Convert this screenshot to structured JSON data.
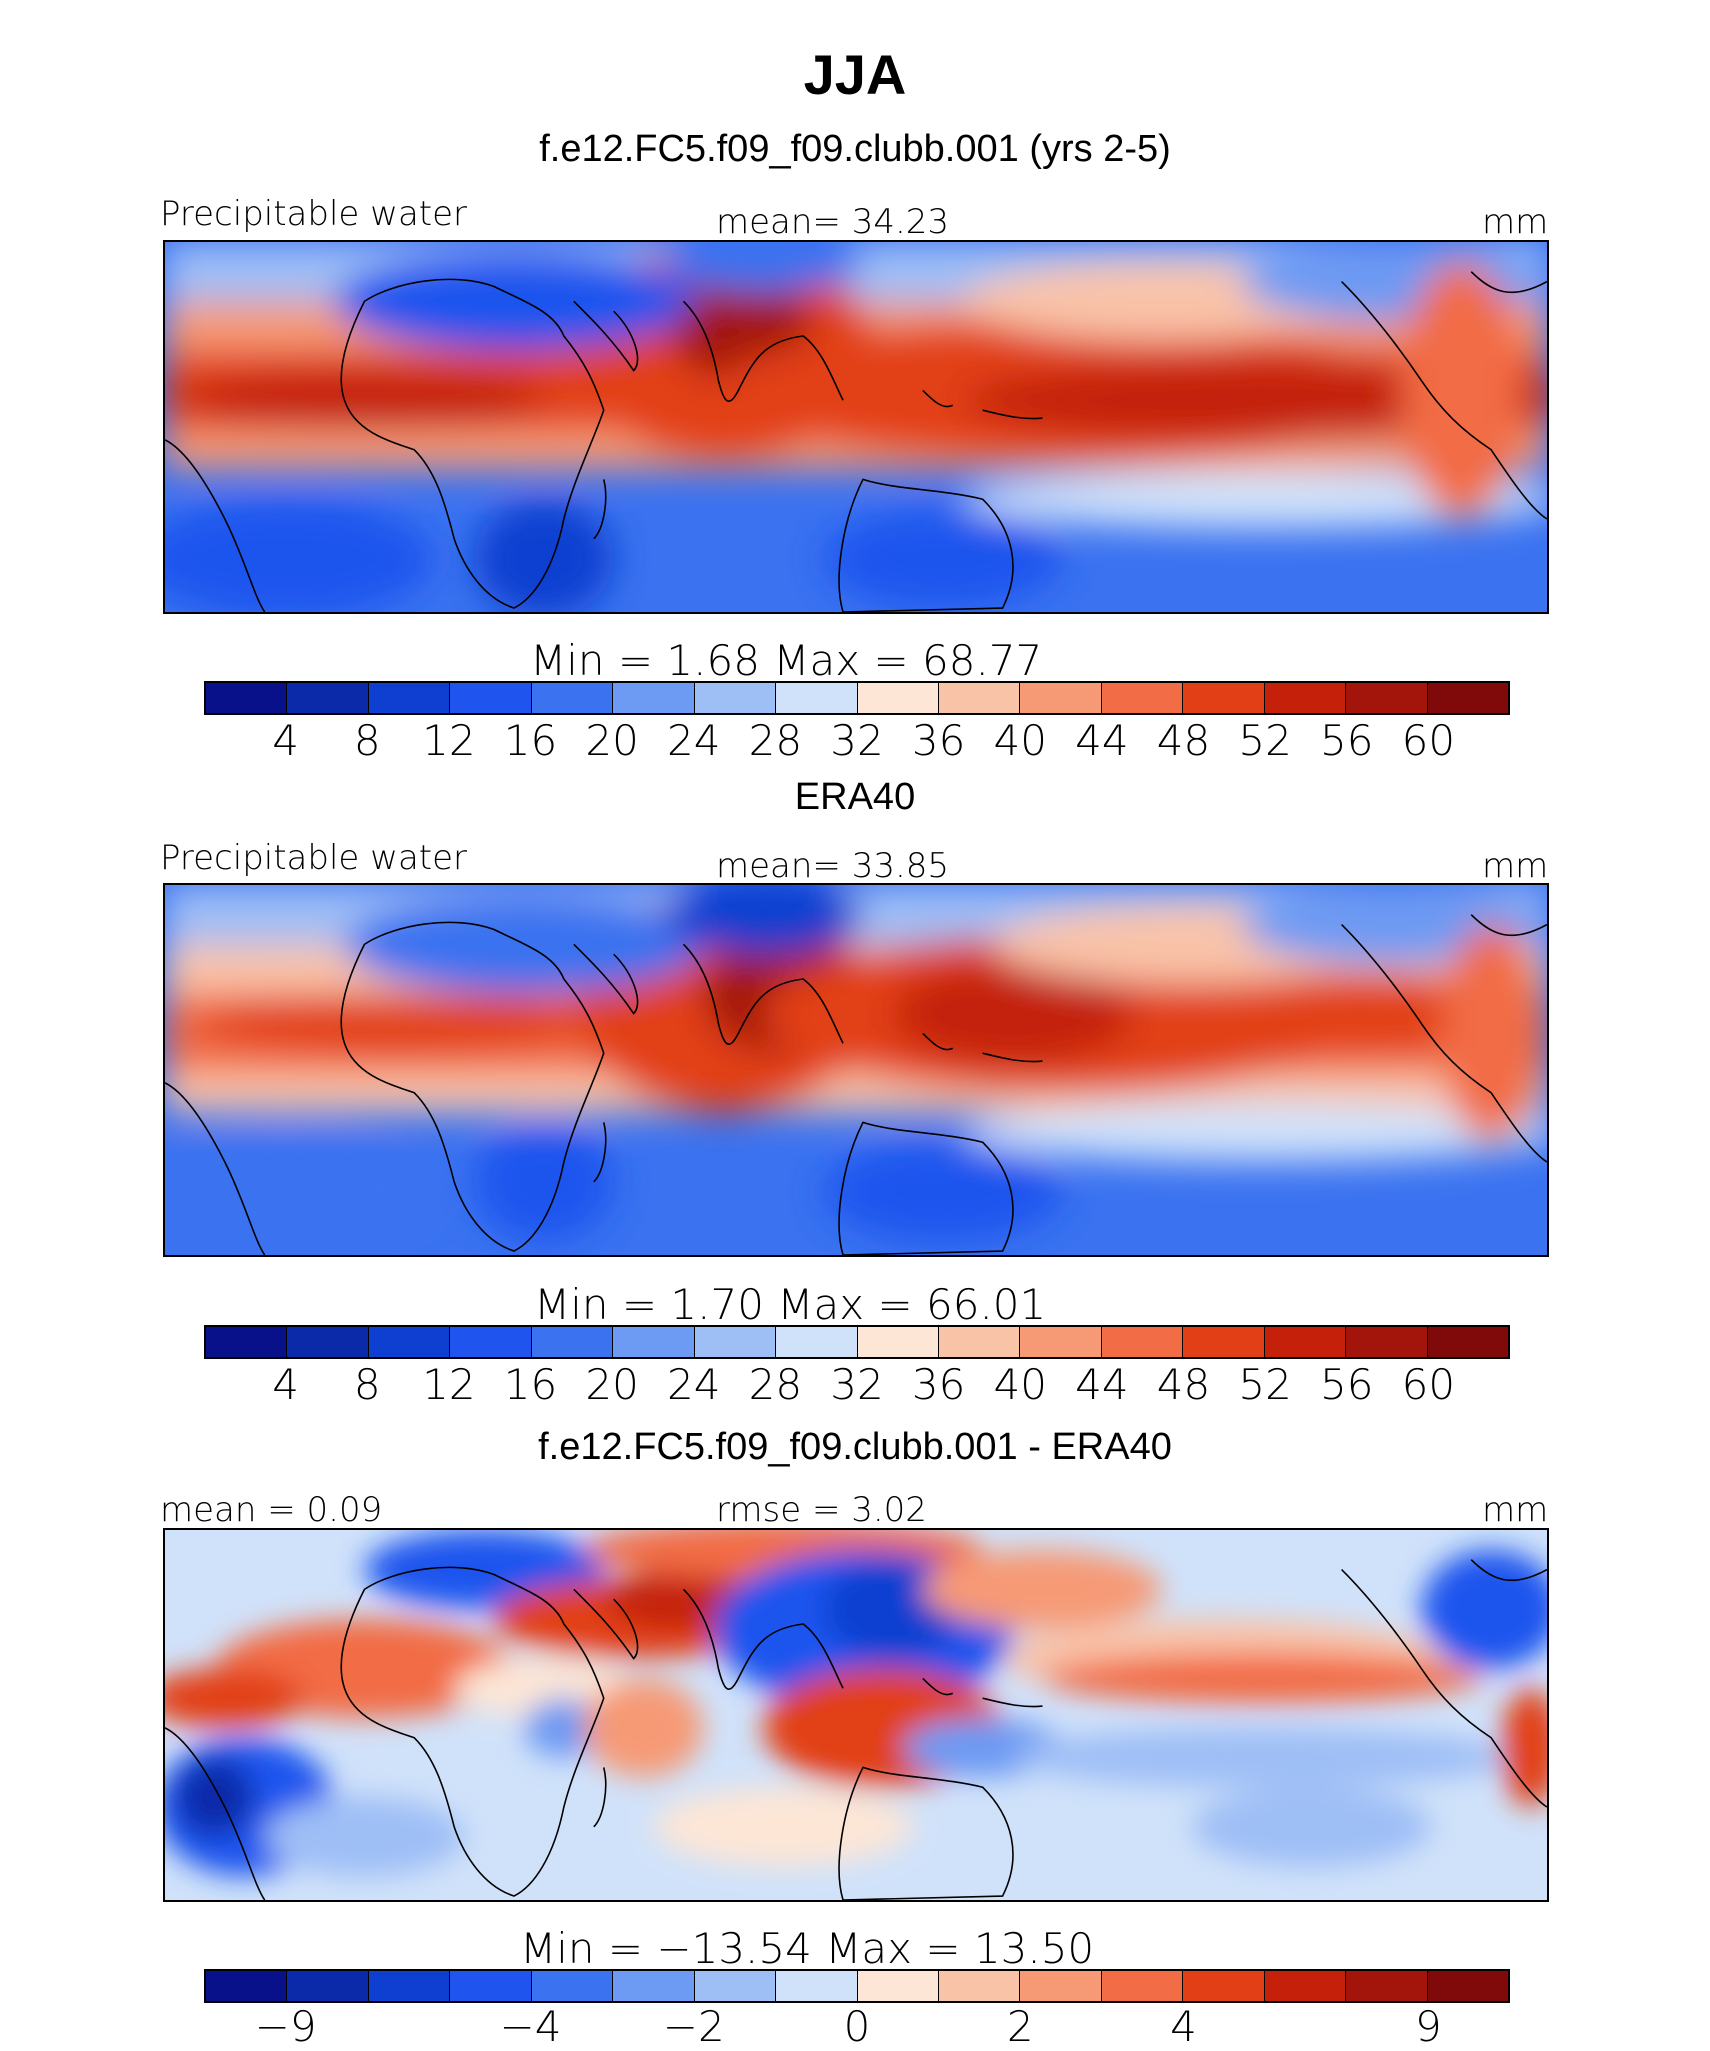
{
  "figure": {
    "title": "JJA"
  },
  "panels": [
    {
      "title": "f.e12.FC5.f09_f09.clubb.001 (yrs 2-5)",
      "left_label": "Precipitable water",
      "center_label": "mean=   34.23",
      "units": "mm",
      "minmax": "Min  =     1.68  Max  =    68.77",
      "field": "model"
    },
    {
      "title": "ERA40",
      "left_label": "Precipitable water",
      "center_label": "mean=   33.85",
      "units": "mm",
      "minmax": "Min  =     1.70  Max  =    66.01",
      "field": "obs"
    },
    {
      "title": "f.e12.FC5.f09_f09.clubb.001 - ERA40",
      "left_label": "mean =    0.09",
      "center_label": "rmse =    3.02",
      "units": "mm",
      "minmax": "Min  = −13.54  Max  =    13.50",
      "field": "diff"
    }
  ],
  "colorbar_abs": {
    "colors": [
      "#08108a",
      "#0a2aaa",
      "#0f3fd0",
      "#1f55ee",
      "#3a72f0",
      "#6d9af3",
      "#9ebef6",
      "#d0e2fa",
      "#fde6d6",
      "#f9c3a8",
      "#f69a76",
      "#f26c45",
      "#e23f17",
      "#c4200a",
      "#a3140a",
      "#800a0a"
    ],
    "ticks": [
      "4",
      "8",
      "12",
      "16",
      "20",
      "24",
      "28",
      "32",
      "36",
      "40",
      "44",
      "48",
      "52",
      "56",
      "60"
    ]
  },
  "colorbar_diff": {
    "colors": [
      "#08108a",
      "#0a2aaa",
      "#0f3fd0",
      "#1f55ee",
      "#3a72f0",
      "#6d9af3",
      "#9ebef6",
      "#d0e2fa",
      "#fde6d6",
      "#f9c3a8",
      "#f69a76",
      "#f26c45",
      "#e23f17",
      "#c4200a",
      "#a3140a",
      "#800a0a"
    ],
    "ticks": [
      "−9",
      "−4",
      "−2",
      "0",
      "2",
      "4",
      "9"
    ],
    "tick_boundaries": [
      1,
      4,
      6,
      8,
      10,
      12,
      15
    ]
  }
}
